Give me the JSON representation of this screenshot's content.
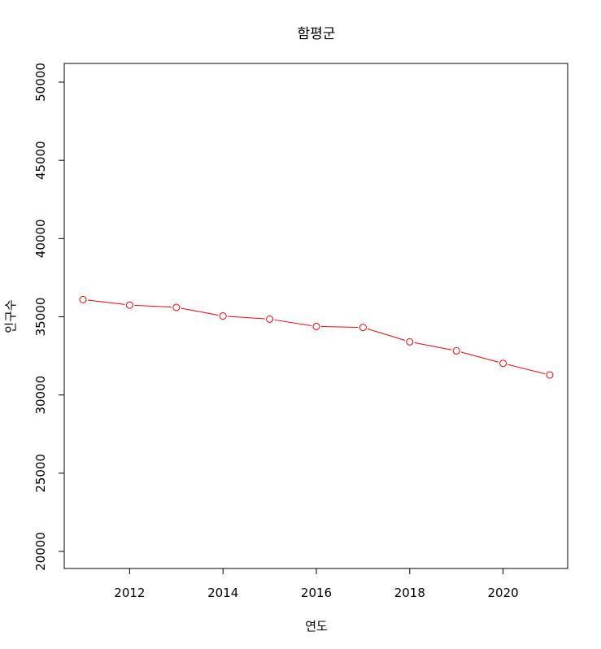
{
  "chart_data": {
    "type": "line",
    "title": "함평군",
    "xlabel": "연도",
    "ylabel": "인구수",
    "x": [
      2011,
      2012,
      2013,
      2014,
      2015,
      2016,
      2017,
      2018,
      2019,
      2020,
      2021
    ],
    "series": [
      {
        "values": [
          36100,
          35750,
          35600,
          35050,
          34850,
          34380,
          34320,
          33400,
          32820,
          32020,
          31280
        ],
        "color": "#ff0000",
        "marker": "open-circle"
      }
    ],
    "xlim": [
      2011,
      2021
    ],
    "ylim": [
      20000,
      50000
    ],
    "xticks": [
      "2012",
      "2014",
      "2016",
      "2018",
      "2020"
    ],
    "yticks": [
      "20000",
      "25000",
      "30000",
      "35000",
      "40000",
      "45000",
      "50000"
    ],
    "grid": false,
    "legend": "none"
  }
}
